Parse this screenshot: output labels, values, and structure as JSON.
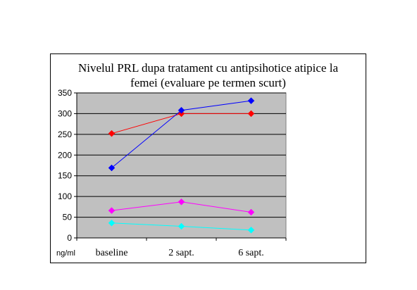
{
  "chart_data": {
    "type": "line",
    "title_lines": [
      "Nivelul PRL dupa tratament cu antipsihotice atipice la",
      "femei (evaluare pe termen scurt)"
    ],
    "unit_label": "ng/ml",
    "categories": [
      "baseline",
      "2 sapt.",
      "6 sapt."
    ],
    "ylim": [
      0,
      350
    ],
    "yticks": [
      0,
      50,
      100,
      150,
      200,
      250,
      300,
      350
    ],
    "grid": true,
    "plot_background": "#c0c0c0",
    "series": [
      {
        "color": "#ff0000",
        "marker": "diamond",
        "values": [
          252,
          300,
          300
        ]
      },
      {
        "color": "#0000ff",
        "marker": "diamond",
        "values": [
          169,
          308,
          331
        ]
      },
      {
        "color": "#ff00ff",
        "marker": "diamond",
        "values": [
          66,
          87,
          62
        ]
      },
      {
        "color": "#00ffff",
        "marker": "diamond",
        "values": [
          36,
          28,
          19
        ]
      }
    ]
  }
}
